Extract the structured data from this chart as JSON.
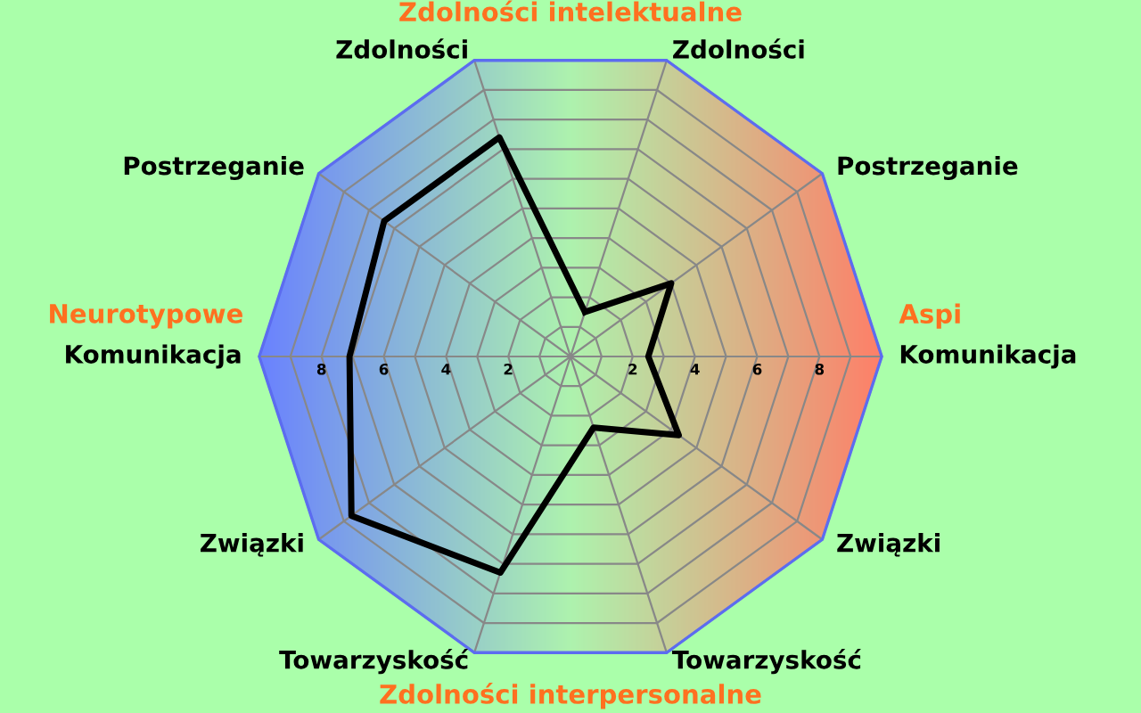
{
  "chart_data": {
    "type": "radar",
    "categories": [
      "Zdolności",
      "Postrzeganie",
      "Komunikacja",
      "Związki",
      "Towarzyskość",
      "Towarzyskość",
      "Związki",
      "Komunikacja",
      "Postrzeganie",
      "Zdolności"
    ],
    "series": [
      {
        "color": "#000000",
        "values": [
          1.5,
          4.0,
          2.5,
          4.3,
          2.4,
          7.3,
          8.7,
          7.1,
          7.4,
          7.4
        ]
      }
    ],
    "ylim": [
      0,
      10
    ],
    "yticks": [
      2,
      4,
      6,
      8
    ],
    "grid": true,
    "marker": "none",
    "line_style": "solid",
    "annotations": [
      "Zdolności intelektualne",
      "Zdolności interpersonalne",
      "Neurotypowe",
      "Aspi",
      "2",
      "4",
      "6",
      "8"
    ]
  }
}
